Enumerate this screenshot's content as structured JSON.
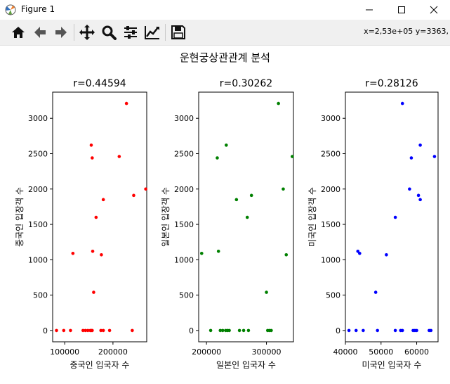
{
  "window": {
    "title": "Figure 1"
  },
  "toolbar": {
    "buttons": [
      "home-icon",
      "back-icon",
      "forward-icon",
      "pan-icon",
      "zoom-icon",
      "configure-subplots-icon",
      "edit-axis-icon",
      "save-icon"
    ],
    "coords": "x=2,53e+05 y=3363,"
  },
  "figure": {
    "suptitle": "운현궁상관관계 분석"
  },
  "chart_data": [
    {
      "type": "scatter",
      "title": "r=0.44594",
      "xlabel": "중국인 입국자 수",
      "ylabel": "중국인 입장객 수",
      "color": "#ff0000",
      "xlim": [
        75000,
        270000
      ],
      "ylim": [
        -160,
        3370
      ],
      "xticks": [
        100000,
        200000
      ],
      "xtick_labels": [
        "100000",
        "200000"
      ],
      "yticks": [
        0,
        500,
        1000,
        1500,
        2000,
        2500,
        3000
      ],
      "ytick_labels": [
        "0",
        "500",
        "1000",
        "1500",
        "2000",
        "2500",
        "3000"
      ],
      "x": [
        83000,
        98000,
        112000,
        138000,
        143000,
        148000,
        153000,
        157000,
        155000,
        175000,
        180000,
        193000,
        240000,
        117000,
        158000,
        160000,
        176000,
        180000,
        165000,
        155000,
        157000,
        213000,
        243000,
        268000,
        228000
      ],
      "y": [
        0,
        0,
        0,
        0,
        0,
        0,
        0,
        0,
        0,
        0,
        0,
        0,
        0,
        1090,
        1120,
        540,
        1070,
        1850,
        1600,
        2620,
        2440,
        2460,
        1910,
        2000,
        3210
      ]
    },
    {
      "type": "scatter",
      "title": "r=0.30262",
      "xlabel": "일본인 입국자 수",
      "ylabel": "일본인 입장객 수",
      "color": "#008000",
      "xlim": [
        187000,
        345000
      ],
      "ylim": [
        -160,
        3370
      ],
      "xticks": [
        200000,
        300000
      ],
      "xtick_labels": [
        "200000",
        "300000"
      ],
      "yticks": [
        0,
        500,
        1000,
        1500,
        2000,
        2500,
        3000
      ],
      "ytick_labels": [
        "0",
        "500",
        "1000",
        "1500",
        "2000",
        "2500",
        "3000"
      ],
      "x": [
        207000,
        223000,
        227000,
        232000,
        235000,
        238000,
        255000,
        262000,
        270000,
        302000,
        305000,
        308000,
        192000,
        220000,
        300000,
        333000,
        268000,
        250000,
        275000,
        218000,
        233000,
        343000,
        328000,
        320000
      ],
      "y": [
        0,
        0,
        0,
        0,
        0,
        0,
        0,
        0,
        0,
        0,
        0,
        0,
        1090,
        1120,
        540,
        1070,
        1600,
        1850,
        1910,
        2440,
        2620,
        2460,
        2000,
        3210
      ]
    },
    {
      "type": "scatter",
      "title": "r=0.28126",
      "xlabel": "미국인 입국자 수",
      "ylabel": "미국인 입장객 수",
      "color": "#0000ff",
      "xlim": [
        40000,
        66000
      ],
      "ylim": [
        -160,
        3370
      ],
      "xticks": [
        40000,
        50000,
        60000
      ],
      "xtick_labels": [
        "40000",
        "50000",
        "60000"
      ],
      "yticks": [
        0,
        500,
        1000,
        1500,
        2000,
        2500,
        3000
      ],
      "ytick_labels": [
        "0",
        "500",
        "1000",
        "1500",
        "2000",
        "2500",
        "3000"
      ],
      "x": [
        41000,
        43000,
        45000,
        49000,
        54000,
        55500,
        56000,
        59000,
        59500,
        60000,
        63500,
        64000,
        43500,
        44000,
        48500,
        51500,
        54000,
        58000,
        60500,
        61000,
        58500,
        61000,
        65000,
        56000
      ],
      "y": [
        0,
        0,
        0,
        0,
        0,
        0,
        0,
        0,
        0,
        0,
        0,
        0,
        1120,
        1090,
        540,
        1070,
        1600,
        2000,
        1910,
        1850,
        2440,
        2620,
        2460,
        3210
      ]
    }
  ]
}
